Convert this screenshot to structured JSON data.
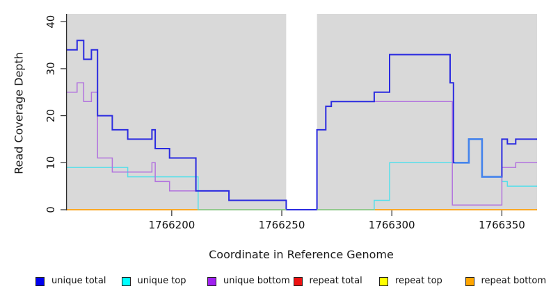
{
  "figure": {
    "xlabel": "Coordinate in Reference Genome",
    "ylabel": "Read Coverage Depth"
  },
  "legend": {
    "items": [
      {
        "id": "unique-total",
        "label": "unique total",
        "color": "#0000EE"
      },
      {
        "id": "unique-top",
        "label": "unique top",
        "color": "#00FFFF"
      },
      {
        "id": "unique-bottom",
        "label": "unique bottom",
        "color": "#A020F0"
      },
      {
        "id": "repeat-total",
        "label": "repeat total",
        "color": "#EE1111"
      },
      {
        "id": "repeat-top",
        "label": "repeat top",
        "color": "#FFFF00"
      },
      {
        "id": "repeat-bottom",
        "label": "repeat bottom",
        "color": "#FFA500"
      }
    ]
  },
  "chart_data": {
    "type": "line",
    "step": true,
    "title": "",
    "xlabel": "Coordinate in Reference Genome",
    "ylabel": "Read Coverage Depth",
    "x_range": [
      1766152,
      1766366
    ],
    "y_range": [
      0,
      41.8
    ],
    "x_ticks": [
      1766200,
      1766250,
      1766300,
      1766350
    ],
    "y_ticks": [
      0,
      10,
      20,
      30,
      40
    ],
    "grid": false,
    "legend_position": "bottom",
    "plot_bg": "#D9D9D9",
    "axis_color": "#2b2b2b",
    "masked_region": {
      "x_start": 1766252,
      "x_end": 1766266,
      "color": "#FFFFFF"
    },
    "series": [
      {
        "id": "repeat-total",
        "name": "repeat total",
        "line_color": "#DD2222",
        "width": 1.4,
        "points": [
          [
            1766152,
            0
          ],
          [
            1766366,
            0
          ]
        ]
      },
      {
        "id": "repeat-top",
        "name": "repeat top",
        "line_color": "#FFE800",
        "width": 1.4,
        "points": [
          [
            1766152,
            0
          ],
          [
            1766366,
            0
          ]
        ]
      },
      {
        "id": "repeat-bottom",
        "name": "repeat bottom",
        "line_color": "#FFA41C",
        "width": 1.6,
        "points": [
          [
            1766152,
            0
          ],
          [
            1766366,
            0
          ]
        ]
      },
      {
        "id": "unique-top",
        "name": "unique top",
        "line_color": "#55DFEA",
        "width": 1.5,
        "points": [
          [
            1766152,
            9
          ],
          [
            1766180,
            7
          ],
          [
            1766212,
            0
          ],
          [
            1766292,
            2
          ],
          [
            1766299,
            10
          ],
          [
            1766335,
            15
          ],
          [
            1766341,
            7
          ],
          [
            1766350,
            6
          ],
          [
            1766352.5,
            5
          ],
          [
            1766366,
            5
          ]
        ]
      },
      {
        "id": "unique-bottom",
        "name": "unique bottom",
        "line_color": "#B273DE",
        "width": 1.5,
        "points": [
          [
            1766152,
            25
          ],
          [
            1766157,
            27
          ],
          [
            1766160,
            23
          ],
          [
            1766163.5,
            25
          ],
          [
            1766166.3,
            11
          ],
          [
            1766173,
            8
          ],
          [
            1766191,
            10
          ],
          [
            1766192.5,
            6
          ],
          [
            1766199,
            4
          ],
          [
            1766226,
            2
          ],
          [
            1766252,
            0
          ],
          [
            1766266,
            17
          ],
          [
            1766270,
            22
          ],
          [
            1766272.5,
            23
          ],
          [
            1766327.5,
            1
          ],
          [
            1766350,
            9
          ],
          [
            1766356.3,
            10
          ],
          [
            1766366,
            10
          ]
        ]
      },
      {
        "id": "unique-total",
        "name": "unique total",
        "line_color": "#2B2BE0",
        "width": 2,
        "points": [
          [
            1766152,
            34
          ],
          [
            1766157,
            36
          ],
          [
            1766160,
            32
          ],
          [
            1766163.5,
            34
          ],
          [
            1766166.3,
            20
          ],
          [
            1766173,
            17
          ],
          [
            1766180,
            15
          ],
          [
            1766191,
            17
          ],
          [
            1766192.5,
            13
          ],
          [
            1766199,
            11
          ],
          [
            1766211,
            4
          ],
          [
            1766226,
            2
          ],
          [
            1766252,
            0
          ],
          [
            1766266,
            17
          ],
          [
            1766270,
            22
          ],
          [
            1766272.5,
            23
          ],
          [
            1766292,
            25
          ],
          [
            1766299,
            33
          ],
          [
            1766326.5,
            27
          ],
          [
            1766328,
            10
          ],
          [
            1766335,
            15
          ],
          [
            1766341,
            7
          ],
          [
            1766350,
            15
          ],
          [
            1766352.5,
            14
          ],
          [
            1766356.3,
            15
          ],
          [
            1766366,
            15
          ]
        ]
      }
    ],
    "overlap_segments": [
      {
        "id": "cyan-over-orange-1",
        "color": "#8CCB8E",
        "width": 1.6,
        "points": [
          [
            1766212,
            0
          ],
          [
            1766252,
            0
          ]
        ]
      },
      {
        "id": "cyan-over-orange-2",
        "color": "#8CCB8E",
        "width": 1.6,
        "points": [
          [
            1766266,
            0
          ],
          [
            1766292,
            0
          ]
        ]
      },
      {
        "id": "blue-over-cyan",
        "color": "#4484EC",
        "width": 2.6,
        "points": [
          [
            1766328.5,
            10
          ],
          [
            1766335,
            15
          ],
          [
            1766341,
            7
          ],
          [
            1766350,
            7
          ]
        ]
      }
    ]
  }
}
